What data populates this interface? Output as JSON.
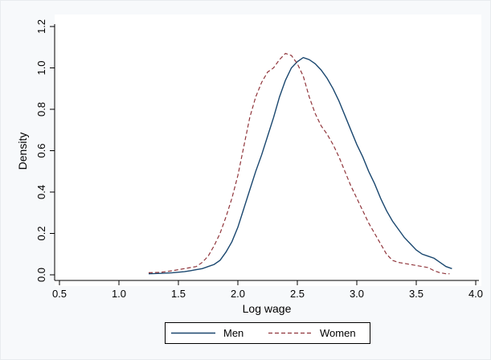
{
  "chart_data": {
    "type": "line",
    "xlabel": "Log wage",
    "ylabel": "Density",
    "xlim": [
      0.5,
      4.0
    ],
    "ylim": [
      0.0,
      1.2
    ],
    "x_ticks": [
      "0.5",
      "1.0",
      "1.5",
      "2.0",
      "2.5",
      "3.0",
      "3.5",
      "4.0"
    ],
    "y_ticks": [
      "0.0",
      "0.2",
      "0.4",
      "0.6",
      "0.8",
      "1.0",
      "1.2"
    ],
    "grid": false,
    "legend_position": "bottom",
    "series": [
      {
        "name": "Men",
        "color": "#1a476f",
        "style": "solid",
        "x": [
          1.25,
          1.35,
          1.45,
          1.55,
          1.6,
          1.65,
          1.7,
          1.75,
          1.8,
          1.85,
          1.9,
          1.95,
          2.0,
          2.05,
          2.1,
          2.15,
          2.2,
          2.25,
          2.3,
          2.35,
          2.4,
          2.45,
          2.5,
          2.55,
          2.6,
          2.65,
          2.7,
          2.75,
          2.8,
          2.85,
          2.9,
          2.95,
          3.0,
          3.05,
          3.1,
          3.15,
          3.2,
          3.25,
          3.3,
          3.35,
          3.4,
          3.45,
          3.5,
          3.55,
          3.6,
          3.65,
          3.7,
          3.75,
          3.8
        ],
        "y": [
          0.005,
          0.007,
          0.01,
          0.015,
          0.02,
          0.025,
          0.03,
          0.04,
          0.05,
          0.07,
          0.11,
          0.16,
          0.23,
          0.32,
          0.41,
          0.5,
          0.58,
          0.67,
          0.76,
          0.86,
          0.94,
          1.0,
          1.03,
          1.05,
          1.04,
          1.02,
          0.99,
          0.95,
          0.9,
          0.84,
          0.77,
          0.7,
          0.63,
          0.57,
          0.5,
          0.44,
          0.37,
          0.31,
          0.26,
          0.22,
          0.18,
          0.15,
          0.12,
          0.1,
          0.09,
          0.08,
          0.06,
          0.04,
          0.03
        ]
      },
      {
        "name": "Women",
        "color": "#90353b",
        "style": "dashed",
        "x": [
          1.25,
          1.35,
          1.45,
          1.55,
          1.6,
          1.65,
          1.7,
          1.75,
          1.8,
          1.85,
          1.9,
          1.95,
          2.0,
          2.05,
          2.1,
          2.15,
          2.2,
          2.25,
          2.3,
          2.35,
          2.4,
          2.45,
          2.5,
          2.55,
          2.6,
          2.65,
          2.7,
          2.75,
          2.8,
          2.85,
          2.9,
          2.95,
          3.0,
          3.05,
          3.1,
          3.15,
          3.2,
          3.25,
          3.3,
          3.35,
          3.4,
          3.45,
          3.5,
          3.55,
          3.6,
          3.65,
          3.7,
          3.75,
          3.78
        ],
        "y": [
          0.01,
          0.012,
          0.02,
          0.03,
          0.035,
          0.04,
          0.06,
          0.09,
          0.14,
          0.2,
          0.28,
          0.37,
          0.48,
          0.62,
          0.76,
          0.86,
          0.93,
          0.98,
          1.0,
          1.04,
          1.07,
          1.06,
          1.02,
          0.96,
          0.86,
          0.78,
          0.72,
          0.68,
          0.63,
          0.57,
          0.5,
          0.43,
          0.37,
          0.31,
          0.25,
          0.2,
          0.15,
          0.1,
          0.07,
          0.06,
          0.055,
          0.05,
          0.045,
          0.04,
          0.035,
          0.02,
          0.01,
          0.005,
          0.005
        ]
      }
    ]
  }
}
